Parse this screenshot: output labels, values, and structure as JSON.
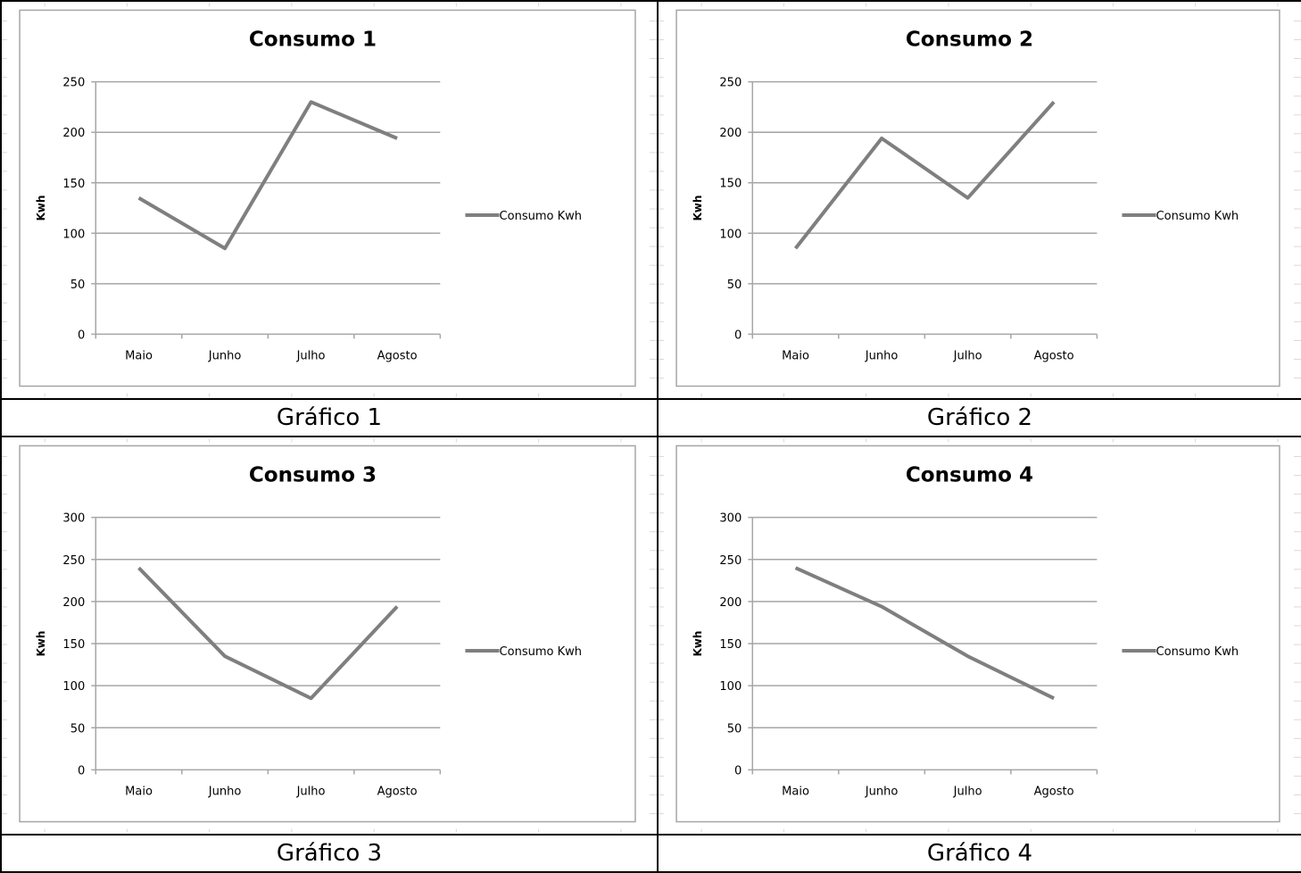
{
  "captions": [
    "Gráfico 1",
    "Gráfico 2",
    "Gráfico 3",
    "Gráfico 4"
  ],
  "colors": {
    "series": "#7f7f7f",
    "gridline": "#a6a6a6",
    "frame": "#a6a6a6",
    "sheet_grid": "#d9d9d9"
  },
  "chart_data": [
    {
      "type": "line",
      "title": "Consumo 1",
      "ylabel": "Kwh",
      "categories": [
        "Maio",
        "Junho",
        "Julho",
        "Agosto"
      ],
      "series": [
        {
          "name": "Consumo Kwh",
          "values": [
            135,
            85,
            230,
            194
          ]
        }
      ],
      "ylim": [
        0,
        250
      ],
      "yticks": [
        0,
        50,
        100,
        150,
        200,
        250
      ],
      "grid": true,
      "legend": "right"
    },
    {
      "type": "line",
      "title": "Consumo 2",
      "ylabel": "Kwh",
      "categories": [
        "Maio",
        "Junho",
        "Julho",
        "Agosto"
      ],
      "series": [
        {
          "name": "Consumo Kwh",
          "values": [
            85,
            194,
            135,
            230
          ]
        }
      ],
      "ylim": [
        0,
        250
      ],
      "yticks": [
        0,
        50,
        100,
        150,
        200,
        250
      ],
      "grid": true,
      "legend": "right"
    },
    {
      "type": "line",
      "title": "Consumo 3",
      "ylabel": "Kwh",
      "categories": [
        "Maio",
        "Junho",
        "Julho",
        "Agosto"
      ],
      "series": [
        {
          "name": "Consumo Kwh",
          "values": [
            240,
            135,
            85,
            194
          ]
        }
      ],
      "ylim": [
        0,
        300
      ],
      "yticks": [
        0,
        50,
        100,
        150,
        200,
        250,
        300
      ],
      "grid": true,
      "legend": "right"
    },
    {
      "type": "line",
      "title": "Consumo 4",
      "ylabel": "Kwh",
      "categories": [
        "Maio",
        "Junho",
        "Julho",
        "Agosto"
      ],
      "series": [
        {
          "name": "Consumo Kwh",
          "values": [
            240,
            194,
            135,
            85
          ]
        }
      ],
      "ylim": [
        0,
        300
      ],
      "yticks": [
        0,
        50,
        100,
        150,
        200,
        250,
        300
      ],
      "grid": true,
      "legend": "right"
    }
  ]
}
